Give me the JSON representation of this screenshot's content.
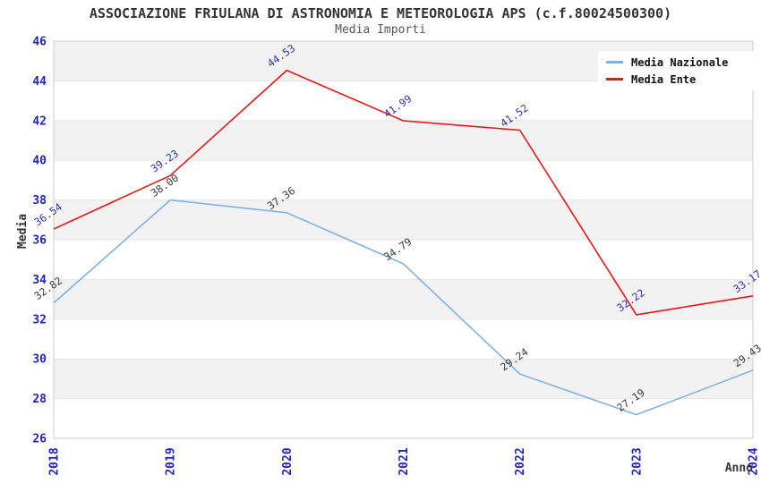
{
  "chart_data": {
    "type": "line",
    "title": "ASSOCIAZIONE FRIULANA DI ASTRONOMIA E METEOROLOGIA APS (c.f.80024500300)",
    "subtitle": "Media Importi",
    "xlabel": "Anno",
    "ylabel": "Media",
    "categories": [
      "2018",
      "2019",
      "2020",
      "2021",
      "2022",
      "2023",
      "2024"
    ],
    "ylim": [
      26,
      46
    ],
    "ytick_step": 2,
    "yticks": [
      26,
      28,
      30,
      32,
      34,
      36,
      38,
      40,
      42,
      44,
      46
    ],
    "grid": "alternating-horizontal-bands",
    "legend_position": "top-right",
    "series": [
      {
        "name": "Media Nazionale",
        "color": "#7FB2E5",
        "label_color": "#3a3a3a",
        "values": [
          32.82,
          38.0,
          37.36,
          34.79,
          29.24,
          27.19,
          29.43
        ]
      },
      {
        "name": "Media Ente",
        "color": "#EE1515",
        "label_color": "#3333A6",
        "values": [
          36.54,
          39.23,
          44.53,
          41.99,
          41.52,
          32.22,
          33.17
        ]
      }
    ],
    "colors": {
      "tick_label": "#2222CC",
      "band_gray": "#F2F2F2",
      "band_white": "#FFFFFF",
      "plot_border": "#CCCCCC",
      "band_edge": "#E6E6E6",
      "axis_title": "#333333"
    }
  }
}
